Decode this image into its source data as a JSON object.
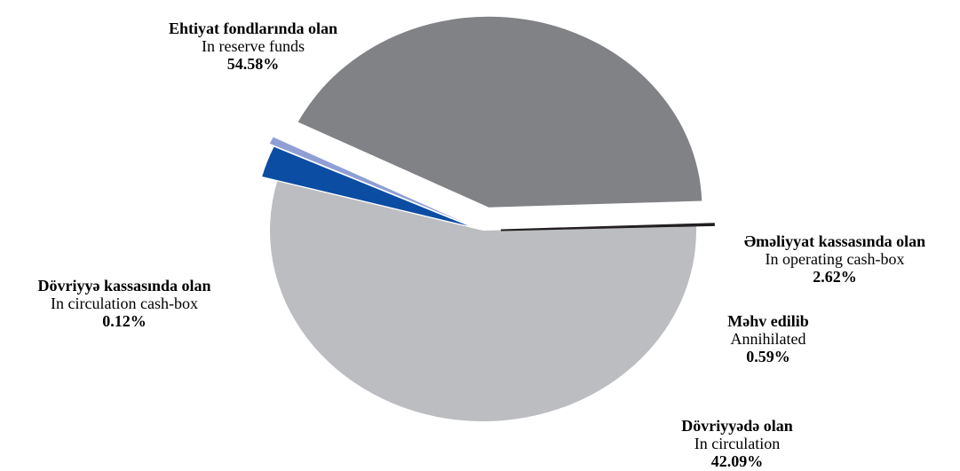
{
  "chart_data": {
    "type": "pie",
    "slices": [
      {
        "label_az": "Ehtiyat fondlarında olan",
        "label_en": "In reserve funds",
        "value": 54.58,
        "pct_label": "54.58%",
        "color": "#bcbdc0"
      },
      {
        "label_az": "Əməliyyat kassasında olan",
        "label_en": "In operating cash-box",
        "value": 2.62,
        "pct_label": "2.62%",
        "color": "#0b4da2"
      },
      {
        "label_az": "Məhv edilib",
        "label_en": "Annihilated",
        "value": 0.59,
        "pct_label": "0.59%",
        "color": "#8f9fd6"
      },
      {
        "label_az": "Dövriyyədə olan",
        "label_en": "In circulation",
        "value": 42.09,
        "pct_label": "42.09%",
        "color": "#808285"
      },
      {
        "label_az": "Dövriyyə kassasında olan",
        "label_en": "In circulation cash-box",
        "value": 0.12,
        "pct_label": "0.12%",
        "color": "#231f20"
      }
    ]
  }
}
